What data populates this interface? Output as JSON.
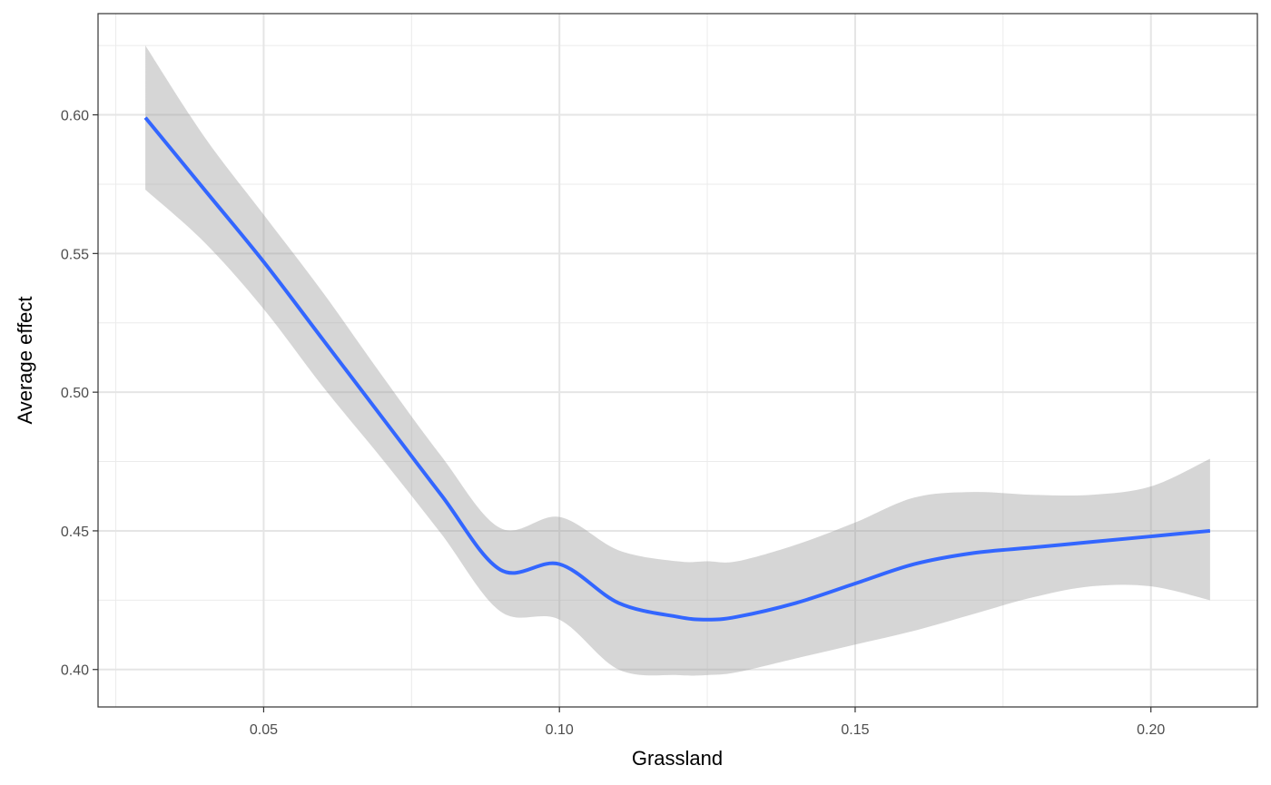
{
  "chart_data": {
    "type": "line",
    "title": "",
    "xlabel": "Grassland",
    "ylabel": "Average effect",
    "xlim": [
      0.022,
      0.218
    ],
    "ylim": [
      0.3865,
      0.6365
    ],
    "x_ticks": [
      0.05,
      0.1,
      0.15,
      0.2
    ],
    "x_tick_labels": [
      "0.05",
      "0.10",
      "0.15",
      "0.20"
    ],
    "y_ticks": [
      0.4,
      0.45,
      0.5,
      0.55,
      0.6
    ],
    "y_tick_labels": [
      "0.40",
      "0.45",
      "0.50",
      "0.55",
      "0.60"
    ],
    "grid": true,
    "legend": "none",
    "series": [
      {
        "type": "smooth",
        "color": "#3366FF",
        "ribbon_color": "#999999",
        "x": [
          0.03,
          0.04,
          0.05,
          0.06,
          0.07,
          0.08,
          0.09,
          0.1,
          0.11,
          0.12,
          0.125,
          0.13,
          0.14,
          0.15,
          0.16,
          0.17,
          0.18,
          0.19,
          0.2,
          0.21
        ],
        "y": [
          0.599,
          0.573,
          0.547,
          0.519,
          0.491,
          0.463,
          0.436,
          0.438,
          0.424,
          0.419,
          0.418,
          0.419,
          0.424,
          0.431,
          0.438,
          0.442,
          0.444,
          0.446,
          0.448,
          0.45
        ],
        "lower": [
          0.573,
          0.554,
          0.53,
          0.502,
          0.476,
          0.449,
          0.421,
          0.418,
          0.4,
          0.398,
          0.398,
          0.399,
          0.404,
          0.409,
          0.414,
          0.42,
          0.426,
          0.43,
          0.43,
          0.425
        ],
        "upper": [
          0.625,
          0.592,
          0.564,
          0.536,
          0.506,
          0.477,
          0.451,
          0.455,
          0.443,
          0.439,
          0.439,
          0.439,
          0.445,
          0.453,
          0.462,
          0.464,
          0.463,
          0.463,
          0.466,
          0.476
        ]
      }
    ]
  }
}
